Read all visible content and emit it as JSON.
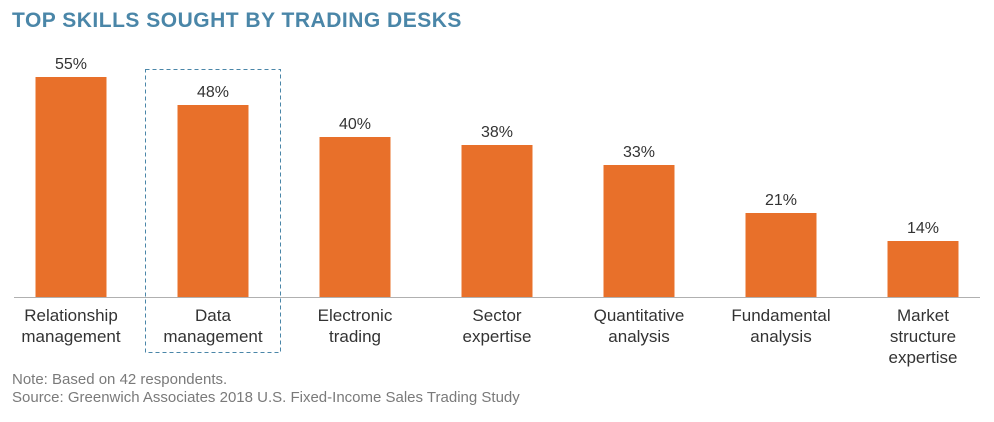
{
  "chart_data": {
    "type": "bar",
    "title": "TOP SKILLS SOUGHT BY TRADING DESKS",
    "categories": [
      [
        "Relationship",
        "management"
      ],
      [
        "Data",
        "management"
      ],
      [
        "Electronic",
        "trading"
      ],
      [
        "Sector",
        "expertise"
      ],
      [
        "Quantitative",
        "analysis"
      ],
      [
        "Fundamental",
        "analysis"
      ],
      [
        "Market",
        "structure",
        "expertise"
      ]
    ],
    "values": [
      55,
      48,
      40,
      38,
      33,
      21,
      14
    ],
    "value_labels": [
      "55%",
      "48%",
      "40%",
      "38%",
      "33%",
      "21%",
      "14%"
    ],
    "unit": "%",
    "highlighted_category_index": 1,
    "bar_color": "#e8702a",
    "highlight_border_color": "#4a86a8",
    "axis_line_color": "#b0b0b0",
    "label_color": "#333333",
    "xlabel": "",
    "ylabel": "",
    "grid": false,
    "legend": "none"
  },
  "notes": {
    "note": "Note: Based on 42 respondents.",
    "source": "Source: Greenwich Associates 2018 U.S. Fixed-Income Sales Trading Study"
  }
}
